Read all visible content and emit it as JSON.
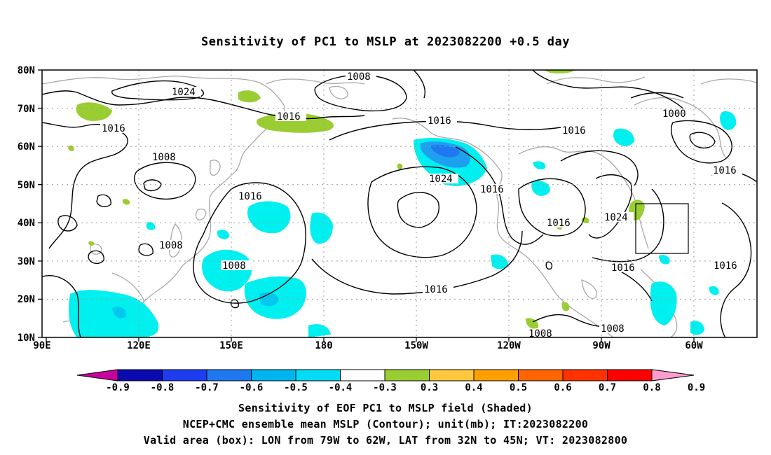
{
  "title": "Sensitivity of PC1 to MSLP at 2023082200 +0.5 day",
  "map": {
    "lat_labels": [
      "80N",
      "70N",
      "60N",
      "50N",
      "40N",
      "30N",
      "20N",
      "10N"
    ],
    "lon_labels": [
      "90E",
      "120E",
      "150E",
      "180",
      "150W",
      "120W",
      "90W",
      "60W"
    ],
    "contour_labels": [
      "1008",
      "1024",
      "1016",
      "1016",
      "1016",
      "1016",
      "1000",
      "1016",
      "1008",
      "1008",
      "1024",
      "1016",
      "1016",
      "1024",
      "1016",
      "1008",
      "1016",
      "1016",
      "1016",
      "1008",
      "1008"
    ],
    "valid_box": {
      "lon_from": "79W",
      "lon_to": "62W",
      "lat_from": "32N",
      "lat_to": "45N"
    }
  },
  "colorbar": {
    "labels": [
      "-0.9",
      "-0.8",
      "-0.7",
      "-0.6",
      "-0.5",
      "-0.4",
      "-0.3",
      "0.3",
      "0.4",
      "0.5",
      "0.6",
      "0.7",
      "0.8",
      "0.9"
    ],
    "colors": [
      "#0a0ab0",
      "#1e3cf0",
      "#1e78f0",
      "#00b4f0",
      "#00dcf5",
      "#ffffff",
      "#9acd32",
      "#ffc83c",
      "#ffa000",
      "#ff6400",
      "#ff3200",
      "#ff0000"
    ],
    "low_end_color": "#c800a0",
    "high_end_color": "#ff9ccf"
  },
  "captions": {
    "line1": "Sensitivity of EOF PC1 to MSLP field (Shaded)",
    "line2": "NCEP+CMC ensemble mean MSLP (Contour); unit(mb); IT:2023082200",
    "line3": "Valid area (box): LON from 79W to 62W, LAT from 32N to 45N; VT: 2023082800"
  }
}
